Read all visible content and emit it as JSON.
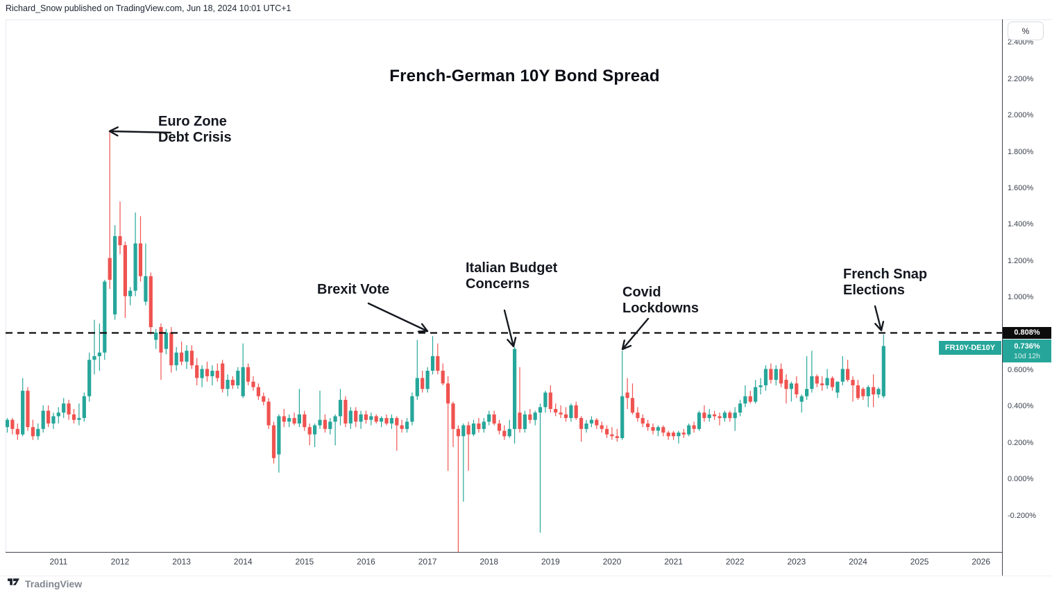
{
  "meta": {
    "attribution": "Richard_Snow published on TradingView.com, Jun 18, 2024 10:01 UTC+1"
  },
  "chart": {
    "title": "French-German 10Y Bond Spread"
  },
  "toolbar": {
    "unit_button": "%"
  },
  "price_axis": {
    "ticks": [
      {
        "v": 2.4,
        "label": "2.400%"
      },
      {
        "v": 2.2,
        "label": "2.200%"
      },
      {
        "v": 2.0,
        "label": "2.000%"
      },
      {
        "v": 1.8,
        "label": "1.800%"
      },
      {
        "v": 1.6,
        "label": "1.600%"
      },
      {
        "v": 1.4,
        "label": "1.400%"
      },
      {
        "v": 1.2,
        "label": "1.200%"
      },
      {
        "v": 1.0,
        "label": "1.000%"
      },
      {
        "v": 0.6,
        "label": "0.600%"
      },
      {
        "v": 0.4,
        "label": "0.400%"
      },
      {
        "v": 0.2,
        "label": "0.200%"
      },
      {
        "v": 0.0,
        "label": "0.000%"
      },
      {
        "v": -0.2,
        "label": "-0.200%"
      }
    ]
  },
  "time_axis": {
    "ticks": [
      {
        "year": 2011,
        "label": "2011"
      },
      {
        "year": 2012,
        "label": "2012"
      },
      {
        "year": 2013,
        "label": "2013"
      },
      {
        "year": 2014,
        "label": "2014"
      },
      {
        "year": 2015,
        "label": "2015"
      },
      {
        "year": 2016,
        "label": "2016"
      },
      {
        "year": 2017,
        "label": "2017"
      },
      {
        "year": 2018,
        "label": "2018"
      },
      {
        "year": 2019,
        "label": "2019"
      },
      {
        "year": 2020,
        "label": "2020"
      },
      {
        "year": 2021,
        "label": "2021"
      },
      {
        "year": 2022,
        "label": "2022"
      },
      {
        "year": 2023,
        "label": "2023"
      },
      {
        "year": 2024,
        "label": "2024"
      },
      {
        "year": 2025,
        "label": "2025"
      },
      {
        "year": 2026,
        "label": "2026"
      }
    ]
  },
  "price_labels": {
    "dashed_level": {
      "text": "0.808%",
      "value": 0.808,
      "bg": "#0c0c0c"
    },
    "last_price": {
      "text": "0.736%",
      "countdown": "10d 12h",
      "value": 0.736,
      "bg": "#26a69a"
    },
    "series_label": {
      "text": "FR10Y-DE10Y",
      "bg": "#26a69a"
    }
  },
  "annotations": [
    {
      "id": "euro_zone",
      "lines": [
        "Euro Zone",
        "Debt Crisis"
      ]
    },
    {
      "id": "brexit",
      "lines": [
        "Brexit Vote"
      ]
    },
    {
      "id": "italian_budget",
      "lines": [
        "Italian Budget",
        "Concerns"
      ]
    },
    {
      "id": "covid",
      "lines": [
        "Covid",
        "Lockdowns"
      ]
    },
    {
      "id": "french_snap",
      "lines": [
        "French Snap",
        "Elections"
      ]
    }
  ],
  "footer": {
    "brand": "TradingView"
  },
  "chart_data": {
    "type": "candlestick",
    "symbol": "FR10Y-DE10Y",
    "title": "French-German 10Y Bond Spread",
    "unit": "percent",
    "timeframe": "1M",
    "start_month": "2010-03",
    "up_color": "#26a69a",
    "down_color": "#ef5350",
    "dashed_level": 0.808,
    "last_close": 0.736,
    "countdown": "10d 12h",
    "ylim": [
      -0.45,
      2.45
    ],
    "x_year_range": [
      2011,
      2026
    ],
    "grid": false,
    "events": [
      {
        "label": "Euro Zone Debt Crisis",
        "month": "2011-11",
        "peak": 1.92
      },
      {
        "label": "Brexit Vote",
        "month": "2017-02",
        "peak": 0.79
      },
      {
        "label": "Italian Budget Concerns",
        "month": "2018-06",
        "peak": 0.73
      },
      {
        "label": "Covid Lockdowns",
        "month": "2020-03",
        "peak": 0.71
      },
      {
        "label": "French Snap Elections",
        "month": "2024-06",
        "peak": 0.8
      }
    ],
    "candles": [
      [
        0.29,
        0.34,
        0.26,
        0.33
      ],
      [
        0.33,
        0.34,
        0.25,
        0.28
      ],
      [
        0.28,
        0.31,
        0.22,
        0.25
      ],
      [
        0.25,
        0.56,
        0.24,
        0.49
      ],
      [
        0.49,
        0.51,
        0.27,
        0.29
      ],
      [
        0.29,
        0.33,
        0.22,
        0.24
      ],
      [
        0.24,
        0.31,
        0.22,
        0.28
      ],
      [
        0.28,
        0.41,
        0.26,
        0.38
      ],
      [
        0.38,
        0.41,
        0.29,
        0.31
      ],
      [
        0.31,
        0.37,
        0.28,
        0.35
      ],
      [
        0.35,
        0.4,
        0.31,
        0.37
      ],
      [
        0.37,
        0.45,
        0.34,
        0.42
      ],
      [
        0.42,
        0.44,
        0.33,
        0.36
      ],
      [
        0.36,
        0.39,
        0.31,
        0.33
      ],
      [
        0.33,
        0.42,
        0.3,
        0.34
      ],
      [
        0.34,
        0.48,
        0.32,
        0.46
      ],
      [
        0.46,
        0.7,
        0.43,
        0.66
      ],
      [
        0.66,
        0.88,
        0.58,
        0.68
      ],
      [
        0.68,
        0.86,
        0.6,
        0.7
      ],
      [
        0.7,
        1.1,
        0.66,
        1.09
      ],
      [
        1.22,
        1.92,
        1.05,
        1.1
      ],
      [
        0.91,
        1.4,
        0.88,
        1.34
      ],
      [
        1.34,
        1.53,
        1.24,
        1.29
      ],
      [
        1.29,
        1.31,
        0.89,
        1.01
      ],
      [
        1.01,
        1.06,
        0.96,
        1.04
      ],
      [
        1.04,
        1.47,
        1.01,
        1.3
      ],
      [
        1.3,
        1.45,
        1.09,
        1.12
      ],
      [
        0.98,
        1.3,
        0.96,
        1.12
      ],
      [
        1.12,
        1.14,
        0.8,
        0.84
      ],
      [
        0.77,
        0.83,
        0.72,
        0.81
      ],
      [
        0.84,
        0.86,
        0.55,
        0.7
      ],
      [
        0.72,
        0.83,
        0.69,
        0.81
      ],
      [
        0.81,
        0.84,
        0.59,
        0.63
      ],
      [
        0.63,
        0.73,
        0.6,
        0.7
      ],
      [
        0.7,
        0.76,
        0.63,
        0.65
      ],
      [
        0.65,
        0.74,
        0.61,
        0.71
      ],
      [
        0.71,
        0.74,
        0.61,
        0.63
      ],
      [
        0.63,
        0.67,
        0.52,
        0.56
      ],
      [
        0.56,
        0.63,
        0.51,
        0.61
      ],
      [
        0.61,
        0.65,
        0.54,
        0.57
      ],
      [
        0.57,
        0.63,
        0.52,
        0.6
      ],
      [
        0.6,
        0.64,
        0.54,
        0.56
      ],
      [
        0.64,
        0.66,
        0.48,
        0.5
      ],
      [
        0.5,
        0.58,
        0.46,
        0.55
      ],
      [
        0.55,
        0.57,
        0.5,
        0.52
      ],
      [
        0.52,
        0.62,
        0.5,
        0.6
      ],
      [
        0.46,
        0.75,
        0.45,
        0.62
      ],
      [
        0.62,
        0.64,
        0.52,
        0.54
      ],
      [
        0.54,
        0.57,
        0.49,
        0.51
      ],
      [
        0.51,
        0.53,
        0.44,
        0.46
      ],
      [
        0.46,
        0.48,
        0.41,
        0.43
      ],
      [
        0.43,
        0.45,
        0.28,
        0.3
      ],
      [
        0.3,
        0.32,
        0.09,
        0.12
      ],
      [
        0.14,
        0.36,
        0.04,
        0.35
      ],
      [
        0.35,
        0.39,
        0.29,
        0.32
      ],
      [
        0.32,
        0.36,
        0.29,
        0.34
      ],
      [
        0.34,
        0.37,
        0.3,
        0.31
      ],
      [
        0.31,
        0.5,
        0.29,
        0.36
      ],
      [
        0.36,
        0.38,
        0.27,
        0.29
      ],
      [
        0.29,
        0.31,
        0.19,
        0.25
      ],
      [
        0.25,
        0.31,
        0.18,
        0.3
      ],
      [
        0.3,
        0.49,
        0.28,
        0.33
      ],
      [
        0.33,
        0.36,
        0.26,
        0.28
      ],
      [
        0.28,
        0.34,
        0.25,
        0.32
      ],
      [
        0.32,
        0.36,
        0.19,
        0.35
      ],
      [
        0.35,
        0.5,
        0.3,
        0.44
      ],
      [
        0.44,
        0.46,
        0.29,
        0.31
      ],
      [
        0.31,
        0.4,
        0.28,
        0.38
      ],
      [
        0.38,
        0.4,
        0.29,
        0.32
      ],
      [
        0.32,
        0.38,
        0.28,
        0.36
      ],
      [
        0.36,
        0.38,
        0.31,
        0.33
      ],
      [
        0.33,
        0.37,
        0.3,
        0.35
      ],
      [
        0.35,
        0.36,
        0.31,
        0.32
      ],
      [
        0.32,
        0.35,
        0.29,
        0.34
      ],
      [
        0.34,
        0.36,
        0.3,
        0.31
      ],
      [
        0.31,
        0.36,
        0.28,
        0.34
      ],
      [
        0.34,
        0.35,
        0.16,
        0.3
      ],
      [
        0.3,
        0.33,
        0.26,
        0.28
      ],
      [
        0.28,
        0.34,
        0.26,
        0.32
      ],
      [
        0.32,
        0.48,
        0.3,
        0.46
      ],
      [
        0.46,
        0.77,
        0.44,
        0.56
      ],
      [
        0.56,
        0.6,
        0.48,
        0.5
      ],
      [
        0.5,
        0.62,
        0.48,
        0.6
      ],
      [
        0.6,
        0.79,
        0.58,
        0.68
      ],
      [
        0.68,
        0.75,
        0.58,
        0.6
      ],
      [
        0.6,
        0.64,
        0.52,
        0.53
      ],
      [
        0.53,
        0.57,
        0.05,
        0.42
      ],
      [
        0.42,
        0.43,
        0.18,
        0.28
      ],
      [
        0.28,
        0.3,
        -0.4,
        0.24
      ],
      [
        0.24,
        0.31,
        -0.12,
        0.3
      ],
      [
        0.3,
        0.32,
        0.05,
        0.25
      ],
      [
        0.25,
        0.33,
        0.24,
        0.31
      ],
      [
        0.31,
        0.34,
        0.26,
        0.28
      ],
      [
        0.28,
        0.34,
        0.26,
        0.32
      ],
      [
        0.32,
        0.38,
        0.3,
        0.36
      ],
      [
        0.36,
        0.38,
        0.3,
        0.31
      ],
      [
        0.31,
        0.33,
        0.25,
        0.27
      ],
      [
        0.27,
        0.3,
        0.22,
        0.24
      ],
      [
        0.24,
        0.33,
        0.23,
        0.28
      ],
      [
        0.28,
        0.73,
        0.2,
        0.72
      ],
      [
        0.37,
        0.62,
        0.26,
        0.28
      ],
      [
        0.28,
        0.38,
        0.26,
        0.36
      ],
      [
        0.36,
        0.39,
        0.31,
        0.33
      ],
      [
        0.33,
        0.38,
        0.3,
        0.37
      ],
      [
        0.37,
        0.42,
        -0.29,
        0.4
      ],
      [
        0.4,
        0.49,
        0.37,
        0.48
      ],
      [
        0.48,
        0.52,
        0.37,
        0.39
      ],
      [
        0.39,
        0.42,
        0.35,
        0.37
      ],
      [
        0.37,
        0.41,
        0.34,
        0.36
      ],
      [
        0.36,
        0.4,
        0.32,
        0.34
      ],
      [
        0.34,
        0.42,
        0.32,
        0.41
      ],
      [
        0.41,
        0.43,
        0.33,
        0.34
      ],
      [
        0.34,
        0.35,
        0.21,
        0.28
      ],
      [
        0.28,
        0.33,
        0.26,
        0.31
      ],
      [
        0.31,
        0.35,
        0.29,
        0.33
      ],
      [
        0.33,
        0.34,
        0.28,
        0.3
      ],
      [
        0.3,
        0.32,
        0.26,
        0.28
      ],
      [
        0.28,
        0.3,
        0.23,
        0.25
      ],
      [
        0.25,
        0.29,
        0.22,
        0.24
      ],
      [
        0.24,
        0.28,
        0.21,
        0.23
      ],
      [
        0.23,
        0.71,
        0.22,
        0.46
      ],
      [
        0.48,
        0.56,
        0.39,
        0.45
      ],
      [
        0.45,
        0.53,
        0.36,
        0.37
      ],
      [
        0.37,
        0.4,
        0.32,
        0.34
      ],
      [
        0.34,
        0.36,
        0.29,
        0.31
      ],
      [
        0.31,
        0.33,
        0.27,
        0.29
      ],
      [
        0.29,
        0.31,
        0.25,
        0.27
      ],
      [
        0.27,
        0.3,
        0.24,
        0.29
      ],
      [
        0.29,
        0.3,
        0.24,
        0.26
      ],
      [
        0.26,
        0.27,
        0.22,
        0.24
      ],
      [
        0.26,
        0.27,
        0.22,
        0.24
      ],
      [
        0.24,
        0.27,
        0.2,
        0.26
      ],
      [
        0.26,
        0.28,
        0.23,
        0.25
      ],
      [
        0.25,
        0.31,
        0.24,
        0.3
      ],
      [
        0.3,
        0.32,
        0.26,
        0.28
      ],
      [
        0.28,
        0.38,
        0.27,
        0.37
      ],
      [
        0.37,
        0.41,
        0.32,
        0.34
      ],
      [
        0.34,
        0.39,
        0.32,
        0.36
      ],
      [
        0.36,
        0.38,
        0.33,
        0.35
      ],
      [
        0.35,
        0.37,
        0.3,
        0.34
      ],
      [
        0.34,
        0.38,
        0.32,
        0.37
      ],
      [
        0.37,
        0.38,
        0.32,
        0.34
      ],
      [
        0.34,
        0.4,
        0.27,
        0.37
      ],
      [
        0.37,
        0.44,
        0.35,
        0.42
      ],
      [
        0.42,
        0.52,
        0.4,
        0.46
      ],
      [
        0.46,
        0.49,
        0.42,
        0.43
      ],
      [
        0.43,
        0.55,
        0.42,
        0.51
      ],
      [
        0.51,
        0.56,
        0.47,
        0.52
      ],
      [
        0.52,
        0.63,
        0.49,
        0.61
      ],
      [
        0.61,
        0.64,
        0.53,
        0.55
      ],
      [
        0.55,
        0.63,
        0.52,
        0.61
      ],
      [
        0.61,
        0.64,
        0.51,
        0.53
      ],
      [
        0.55,
        0.58,
        0.42,
        0.5
      ],
      [
        0.5,
        0.54,
        0.43,
        0.53
      ],
      [
        0.53,
        0.57,
        0.45,
        0.47
      ],
      [
        0.43,
        0.47,
        0.37,
        0.46
      ],
      [
        0.46,
        0.68,
        0.44,
        0.5
      ],
      [
        0.5,
        0.71,
        0.48,
        0.57
      ],
      [
        0.57,
        0.58,
        0.51,
        0.53
      ],
      [
        0.53,
        0.57,
        0.49,
        0.52
      ],
      [
        0.52,
        0.61,
        0.5,
        0.56
      ],
      [
        0.56,
        0.57,
        0.49,
        0.51
      ],
      [
        0.48,
        0.54,
        0.45,
        0.54
      ],
      [
        0.54,
        0.68,
        0.52,
        0.61
      ],
      [
        0.61,
        0.66,
        0.54,
        0.55
      ],
      [
        0.55,
        0.57,
        0.43,
        0.52
      ],
      [
        0.52,
        0.55,
        0.44,
        0.45
      ],
      [
        0.5,
        0.51,
        0.44,
        0.46
      ],
      [
        0.46,
        0.52,
        0.4,
        0.51
      ],
      [
        0.51,
        0.58,
        0.4,
        0.47
      ],
      [
        0.47,
        0.51,
        0.45,
        0.5
      ],
      [
        0.46,
        0.8,
        0.45,
        0.736
      ]
    ]
  }
}
